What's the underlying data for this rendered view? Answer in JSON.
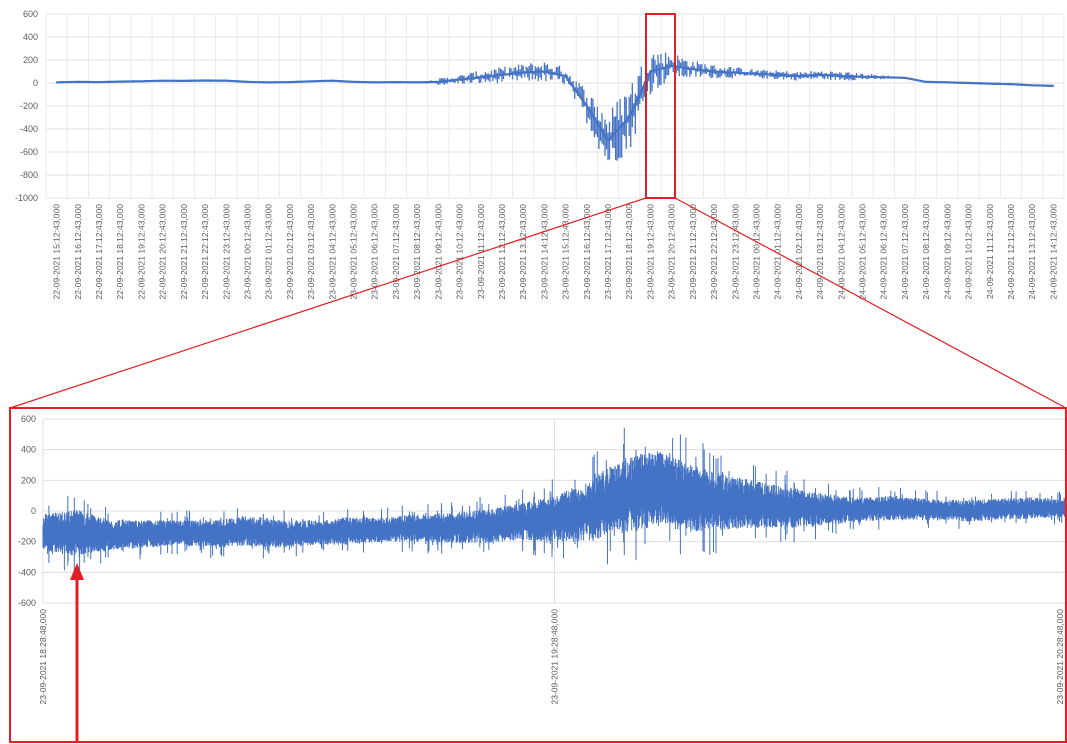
{
  "chart_data": [
    {
      "type": "line",
      "title": "",
      "xlabel": "",
      "ylabel": "",
      "ylim": [
        -1000,
        600
      ],
      "yticks": [
        600,
        400,
        200,
        0,
        -200,
        -400,
        -600,
        -800,
        -1000
      ],
      "grid": true,
      "legend": "none",
      "categories": [
        "22-09-2021 15:12:43,000",
        "22-09-2021 16:12:43,000",
        "22-09-2021 17:12:43,000",
        "22-09-2021 18:12:43,000",
        "22-09-2021 19:12:43,000",
        "22-09-2021 20:12:43,000",
        "22-09-2021 21:12:43,000",
        "22-09-2021 22:12:43,000",
        "22-09-2021 23:12:43,000",
        "23-09-2021 00:12:43,000",
        "23-09-2021 01:12:43,000",
        "23-09-2021 02:12:43,000",
        "23-09-2021 03:12:43,000",
        "23-09-2021 04:12:43,000",
        "23-09-2021 05:12:43,000",
        "23-09-2021 06:12:43,000",
        "23-09-2021 07:12:43,000",
        "23-09-2021 08:12:43,000",
        "23-09-2021 09:12:43,000",
        "23-09-2021 10:12:43,000",
        "23-09-2021 11:12:43,000",
        "23-09-2021 12:12:43,000",
        "23-09-2021 13:12:43,000",
        "23-09-2021 14:12:43,000",
        "23-09-2021 15:12:43,000",
        "23-09-2021 16:12:43,000",
        "23-09-2021 17:12:43,000",
        "23-09-2021 18:12:43,000",
        "23-09-2021 19:12:43,000",
        "23-09-2021 20:12:43,000",
        "23-09-2021 21:12:43,000",
        "23-09-2021 22:12:43,000",
        "23-09-2021 23:12:43,000",
        "24-09-2021 00:12:43,000",
        "24-09-2021 01:12:43,000",
        "24-09-2021 02:12:43,000",
        "24-09-2021 03:12:43,000",
        "24-09-2021 04:12:43,000",
        "24-09-2021 05:12:43,000",
        "24-09-2021 06:12:43,000",
        "24-09-2021 07:12:43,000",
        "24-09-2021 08:12:43,000",
        "24-09-2021 09:12:43,000",
        "24-09-2021 10:12:43,000",
        "24-09-2021 11:12:43,000",
        "24-09-2021 12:12:43,000",
        "24-09-2021 13:12:43,000",
        "24-09-2021 14:12:43,000"
      ],
      "series": [
        {
          "color": "#4472c4",
          "values": [
            5,
            10,
            8,
            12,
            15,
            20,
            18,
            22,
            20,
            10,
            5,
            8,
            15,
            20,
            10,
            5,
            8,
            5,
            10,
            30,
            50,
            70,
            90,
            100,
            60,
            -200,
            -500,
            -300,
            100,
            150,
            120,
            100,
            90,
            80,
            70,
            60,
            70,
            60,
            55,
            50,
            45,
            10,
            5,
            0,
            -5,
            -10,
            -20,
            -25
          ],
          "band": [
            10,
            10,
            10,
            10,
            10,
            10,
            10,
            10,
            10,
            10,
            10,
            10,
            10,
            10,
            10,
            10,
            10,
            0,
            30,
            40,
            60,
            70,
            80,
            90,
            80,
            150,
            250,
            300,
            200,
            120,
            80,
            60,
            50,
            40,
            40,
            40,
            40,
            40,
            30,
            20,
            10,
            0,
            10,
            10,
            10,
            10,
            10,
            10
          ]
        }
      ],
      "highlight_range": [
        "23-09-2021 18:28:48,000",
        "23-09-2021 20:28:48,000"
      ],
      "highlight_color": "#e31e24"
    },
    {
      "type": "line",
      "title": "",
      "xlabel": "",
      "ylabel": "",
      "ylim": [
        -600,
        600
      ],
      "yticks": [
        600,
        400,
        200,
        0,
        -200,
        -400,
        -600
      ],
      "grid": true,
      "legend": "none",
      "xticks": [
        "23-09-2021 18:28:48,000",
        "23-09-2021 19:28:48,000",
        "23-09-2021 20:28:48,000"
      ],
      "series": [
        {
          "color": "#4472c4",
          "x_minutes_from_start": [
            0,
            4,
            8,
            12,
            16,
            20,
            24,
            28,
            32,
            36,
            40,
            44,
            48,
            52,
            56,
            60,
            64,
            68,
            72,
            76,
            80,
            84,
            88,
            92,
            96,
            100,
            104,
            108,
            112,
            116,
            120
          ],
          "values": [
            -150,
            -140,
            -160,
            -150,
            -140,
            -150,
            -130,
            -150,
            -140,
            -130,
            -120,
            -110,
            -110,
            -100,
            -70,
            -50,
            0,
            100,
            150,
            80,
            60,
            40,
            20,
            10,
            10,
            20,
            10,
            0,
            10,
            20,
            20
          ],
          "band": [
            130,
            150,
            100,
            90,
            80,
            90,
            100,
            90,
            80,
            90,
            80,
            90,
            100,
            110,
            120,
            150,
            200,
            250,
            250,
            220,
            180,
            150,
            130,
            100,
            80,
            80,
            70,
            70,
            70,
            70,
            60
          ]
        }
      ],
      "annotation": "arrow"
    }
  ]
}
